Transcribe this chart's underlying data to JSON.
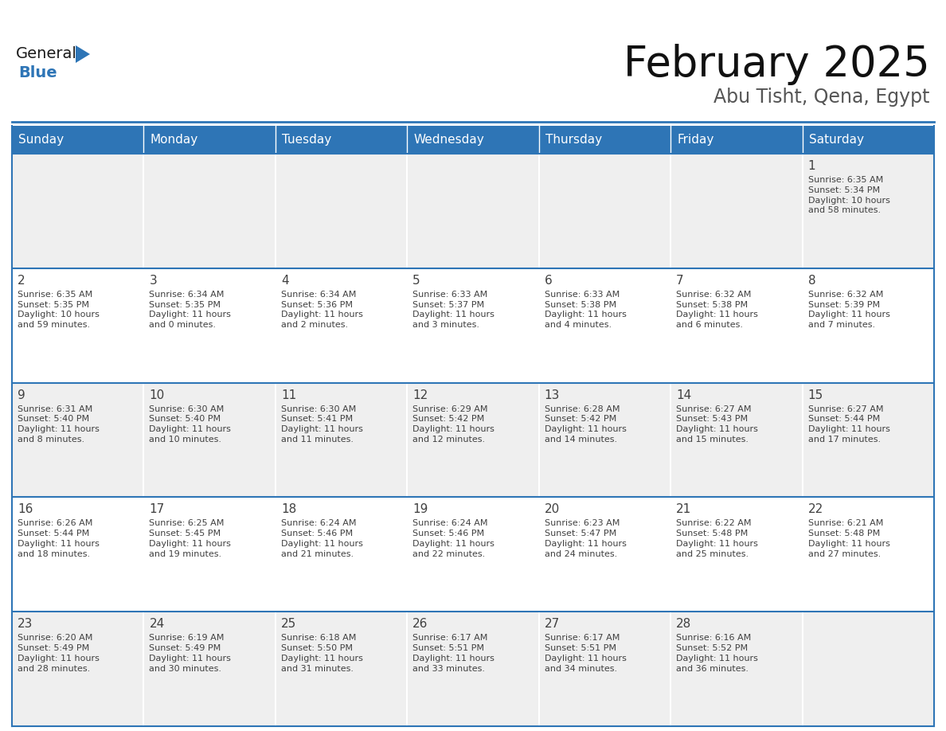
{
  "title": "February 2025",
  "subtitle": "Abu Tisht, Qena, Egypt",
  "header_color": "#2E75B6",
  "header_text_color": "#FFFFFF",
  "cell_bg_white": "#FFFFFF",
  "cell_bg_gray": "#EFEFEF",
  "day_number_color": "#404040",
  "info_text_color": "#404040",
  "border_color": "#2E75B6",
  "separator_color": "#2E75B6",
  "days_of_week": [
    "Sunday",
    "Monday",
    "Tuesday",
    "Wednesday",
    "Thursday",
    "Friday",
    "Saturday"
  ],
  "weeks": [
    [
      {
        "day": null,
        "info": null
      },
      {
        "day": null,
        "info": null
      },
      {
        "day": null,
        "info": null
      },
      {
        "day": null,
        "info": null
      },
      {
        "day": null,
        "info": null
      },
      {
        "day": null,
        "info": null
      },
      {
        "day": "1",
        "info": "Sunrise: 6:35 AM\nSunset: 5:34 PM\nDaylight: 10 hours\nand 58 minutes."
      }
    ],
    [
      {
        "day": "2",
        "info": "Sunrise: 6:35 AM\nSunset: 5:35 PM\nDaylight: 10 hours\nand 59 minutes."
      },
      {
        "day": "3",
        "info": "Sunrise: 6:34 AM\nSunset: 5:35 PM\nDaylight: 11 hours\nand 0 minutes."
      },
      {
        "day": "4",
        "info": "Sunrise: 6:34 AM\nSunset: 5:36 PM\nDaylight: 11 hours\nand 2 minutes."
      },
      {
        "day": "5",
        "info": "Sunrise: 6:33 AM\nSunset: 5:37 PM\nDaylight: 11 hours\nand 3 minutes."
      },
      {
        "day": "6",
        "info": "Sunrise: 6:33 AM\nSunset: 5:38 PM\nDaylight: 11 hours\nand 4 minutes."
      },
      {
        "day": "7",
        "info": "Sunrise: 6:32 AM\nSunset: 5:38 PM\nDaylight: 11 hours\nand 6 minutes."
      },
      {
        "day": "8",
        "info": "Sunrise: 6:32 AM\nSunset: 5:39 PM\nDaylight: 11 hours\nand 7 minutes."
      }
    ],
    [
      {
        "day": "9",
        "info": "Sunrise: 6:31 AM\nSunset: 5:40 PM\nDaylight: 11 hours\nand 8 minutes."
      },
      {
        "day": "10",
        "info": "Sunrise: 6:30 AM\nSunset: 5:40 PM\nDaylight: 11 hours\nand 10 minutes."
      },
      {
        "day": "11",
        "info": "Sunrise: 6:30 AM\nSunset: 5:41 PM\nDaylight: 11 hours\nand 11 minutes."
      },
      {
        "day": "12",
        "info": "Sunrise: 6:29 AM\nSunset: 5:42 PM\nDaylight: 11 hours\nand 12 minutes."
      },
      {
        "day": "13",
        "info": "Sunrise: 6:28 AM\nSunset: 5:42 PM\nDaylight: 11 hours\nand 14 minutes."
      },
      {
        "day": "14",
        "info": "Sunrise: 6:27 AM\nSunset: 5:43 PM\nDaylight: 11 hours\nand 15 minutes."
      },
      {
        "day": "15",
        "info": "Sunrise: 6:27 AM\nSunset: 5:44 PM\nDaylight: 11 hours\nand 17 minutes."
      }
    ],
    [
      {
        "day": "16",
        "info": "Sunrise: 6:26 AM\nSunset: 5:44 PM\nDaylight: 11 hours\nand 18 minutes."
      },
      {
        "day": "17",
        "info": "Sunrise: 6:25 AM\nSunset: 5:45 PM\nDaylight: 11 hours\nand 19 minutes."
      },
      {
        "day": "18",
        "info": "Sunrise: 6:24 AM\nSunset: 5:46 PM\nDaylight: 11 hours\nand 21 minutes."
      },
      {
        "day": "19",
        "info": "Sunrise: 6:24 AM\nSunset: 5:46 PM\nDaylight: 11 hours\nand 22 minutes."
      },
      {
        "day": "20",
        "info": "Sunrise: 6:23 AM\nSunset: 5:47 PM\nDaylight: 11 hours\nand 24 minutes."
      },
      {
        "day": "21",
        "info": "Sunrise: 6:22 AM\nSunset: 5:48 PM\nDaylight: 11 hours\nand 25 minutes."
      },
      {
        "day": "22",
        "info": "Sunrise: 6:21 AM\nSunset: 5:48 PM\nDaylight: 11 hours\nand 27 minutes."
      }
    ],
    [
      {
        "day": "23",
        "info": "Sunrise: 6:20 AM\nSunset: 5:49 PM\nDaylight: 11 hours\nand 28 minutes."
      },
      {
        "day": "24",
        "info": "Sunrise: 6:19 AM\nSunset: 5:49 PM\nDaylight: 11 hours\nand 30 minutes."
      },
      {
        "day": "25",
        "info": "Sunrise: 6:18 AM\nSunset: 5:50 PM\nDaylight: 11 hours\nand 31 minutes."
      },
      {
        "day": "26",
        "info": "Sunrise: 6:17 AM\nSunset: 5:51 PM\nDaylight: 11 hours\nand 33 minutes."
      },
      {
        "day": "27",
        "info": "Sunrise: 6:17 AM\nSunset: 5:51 PM\nDaylight: 11 hours\nand 34 minutes."
      },
      {
        "day": "28",
        "info": "Sunrise: 6:16 AM\nSunset: 5:52 PM\nDaylight: 11 hours\nand 36 minutes."
      },
      {
        "day": null,
        "info": null
      }
    ]
  ],
  "logo_general_color": "#1A1A1A",
  "logo_blue_color": "#2E75B6",
  "logo_triangle_color": "#2E75B6",
  "fig_width": 11.88,
  "fig_height": 9.18,
  "dpi": 100
}
